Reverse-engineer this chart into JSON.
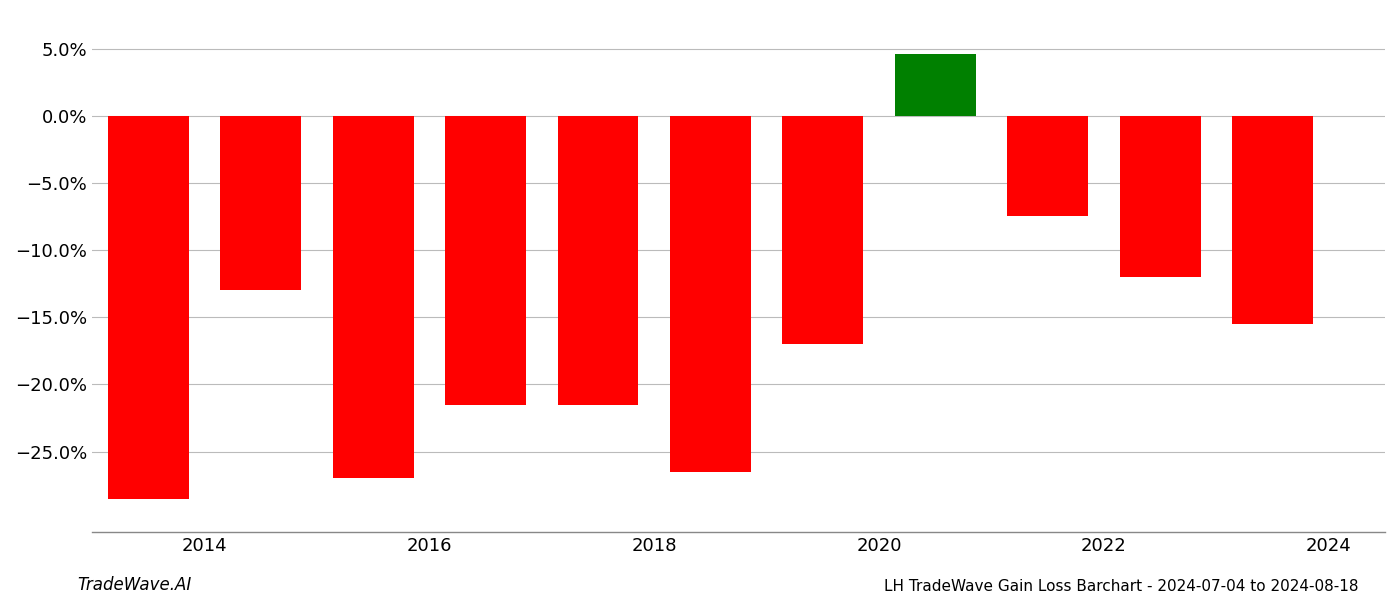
{
  "years": [
    2013,
    2014,
    2015,
    2016,
    2017,
    2018,
    2019,
    2020,
    2021,
    2022,
    2023
  ],
  "values": [
    -0.285,
    -0.13,
    -0.27,
    -0.215,
    -0.215,
    -0.265,
    -0.17,
    0.046,
    -0.075,
    -0.12,
    -0.155
  ],
  "bar_colors": [
    "red",
    "red",
    "red",
    "red",
    "red",
    "red",
    "red",
    "green",
    "red",
    "red",
    "red"
  ],
  "ylim": [
    -0.31,
    0.075
  ],
  "yticks": [
    0.05,
    0.0,
    -0.05,
    -0.1,
    -0.15,
    -0.2,
    -0.25
  ],
  "xtick_positions": [
    2014,
    2016,
    2018,
    2020,
    2022,
    2024
  ],
  "xtick_labels": [
    "2014",
    "2016",
    "2018",
    "2020",
    "2022",
    "2024"
  ],
  "xlabel": "",
  "ylabel": "",
  "title": "",
  "footer_left": "TradeWave.AI",
  "footer_right": "LH TradeWave Gain Loss Barchart - 2024-07-04 to 2024-08-18",
  "background_color": "#ffffff",
  "grid_color": "#bbbbbb",
  "bar_width": 0.72
}
